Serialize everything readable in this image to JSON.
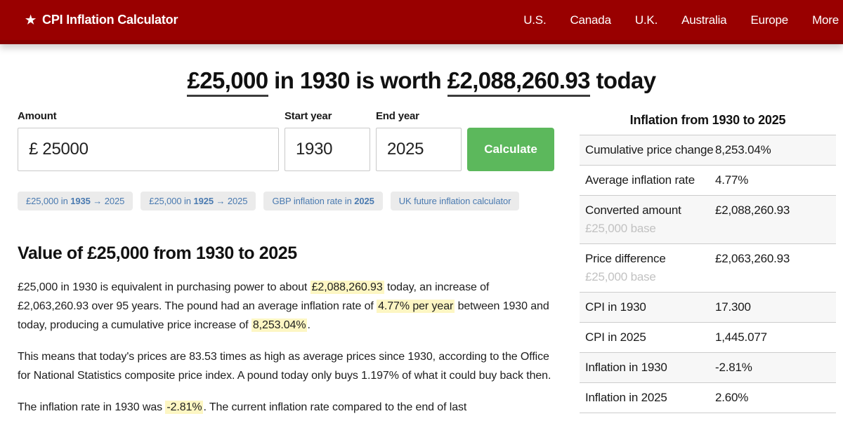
{
  "header": {
    "star_icon": "★",
    "brand": "CPI Inflation Calculator",
    "nav": {
      "us": "U.S.",
      "canada": "Canada",
      "uk": "U.K.",
      "australia": "Australia",
      "europe": "Europe",
      "more": "More"
    }
  },
  "title": {
    "amount_from": "£25,000",
    "middle": " in 1930 is worth ",
    "amount_to": "£2,088,260.93",
    "suffix": " today"
  },
  "form": {
    "amount_label": "Amount",
    "amount_value": "£ 25000",
    "start_year_label": "Start year",
    "start_year_value": "1930",
    "end_year_label": "End year",
    "end_year_value": "2025",
    "calculate_label": "Calculate"
  },
  "pills": [
    {
      "pre": "£25,000 in ",
      "bold": "1935",
      "post": " → 2025"
    },
    {
      "pre": "£25,000 in ",
      "bold": "1925",
      "post": " → 2025"
    },
    {
      "pre": "GBP inflation rate in ",
      "bold": "2025",
      "post": ""
    },
    {
      "pre": "UK future inflation calculator",
      "bold": "",
      "post": ""
    }
  ],
  "article": {
    "heading": "Value of £25,000 from 1930 to 2025",
    "p1": {
      "s1": "£25,000 in 1930 is equivalent in purchasing power to about ",
      "h1": "£2,088,260.93",
      "s2": " today, an increase of £2,063,260.93 over 95 years. The pound had an average inflation rate of ",
      "h2": "4.77% per year",
      "s3": " between 1930 and today, producing a cumulative price increase of ",
      "h3": "8,253.04%",
      "s4": "."
    },
    "p2": "This means that today's prices are 83.53 times as high as average prices since 1930, according to the Office for National Statistics composite price index. A pound today only buys 1.197% of what it could buy back then.",
    "p3": {
      "s1": "The inflation rate in 1930 was ",
      "h1": "-2.81%",
      "s2": ". The current inflation rate compared to the end of last"
    }
  },
  "summary_table": {
    "title": "Inflation from 1930 to 2025",
    "rows": [
      {
        "label": "Cumulative price change",
        "value": "8,253.04%"
      },
      {
        "label": "Average inflation rate",
        "value": "4.77%"
      },
      {
        "label": "Converted amount",
        "sublabel": "£25,000 base",
        "value": "£2,088,260.93"
      },
      {
        "label": "Price difference",
        "sublabel": "£25,000 base",
        "value": "£2,063,260.93"
      },
      {
        "label": "CPI in 1930",
        "value": "17.300"
      },
      {
        "label": "CPI in 2025",
        "value": "1,445.077"
      },
      {
        "label": "Inflation in 1930",
        "value": "-2.81%"
      },
      {
        "label": "Inflation in 2025",
        "value": "2.60%"
      }
    ]
  },
  "colors": {
    "header_red": "#990000",
    "accent_green": "#5cb85c",
    "highlight_yellow": "#fdf6c3",
    "link_blue": "#4a7ab0"
  }
}
